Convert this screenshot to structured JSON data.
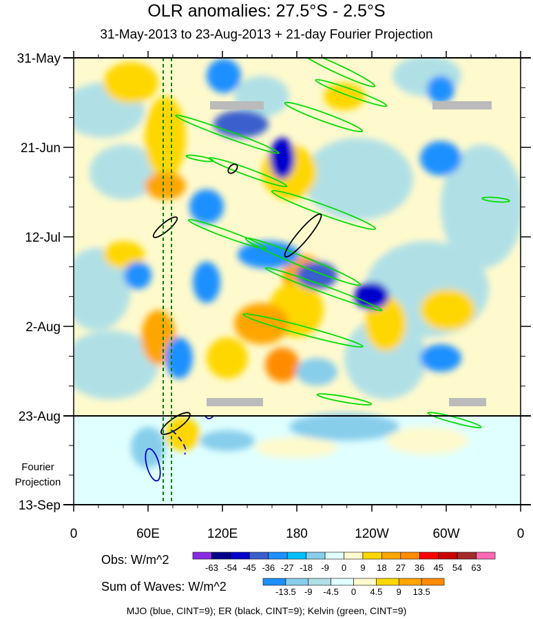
{
  "chart_data": {
    "type": "heatmap",
    "title": "OLR anomalies: 27.5°S - 2.5°S",
    "subtitle": "31-May-2013 to 23-Aug-2013 + 21-day Fourier Projection",
    "x_tick_labels": [
      "0",
      "60E",
      "120E",
      "180",
      "120W",
      "60W",
      "0"
    ],
    "y_tick_labels": [
      "31-May",
      "21-Jun",
      "12-Jul",
      "2-Aug",
      "23-Aug",
      "13-Sep"
    ],
    "projection_label": "Fourier\nProjection",
    "projection_start": "23-Aug",
    "obs_legend": {
      "label": "Obs: W/m^2",
      "ticks": [
        "-63",
        "-54",
        "-45",
        "-36",
        "-27",
        "-18",
        "-9",
        "0",
        "9",
        "18",
        "27",
        "36",
        "45",
        "54",
        "63"
      ],
      "colors": [
        "#8a2be2",
        "#00008b",
        "#0000cd",
        "#3a5fcd",
        "#1e90ff",
        "#00bfff",
        "#87ceeb",
        "#e0ffff",
        "#fffacd",
        "#ffd700",
        "#ffa500",
        "#ff8c00",
        "#ff0000",
        "#cd0000",
        "#a52a2a",
        "#ff69b4"
      ]
    },
    "waves_legend": {
      "label": "Sum of Waves: W/m^2",
      "ticks": [
        "-13.5",
        "-9",
        "-4.5",
        "0",
        "4.5",
        "9",
        "13.5"
      ],
      "colors": [
        "#1e90ff",
        "#87ceeb",
        "#b0e0e6",
        "#e0ffff",
        "#fffacd",
        "#ffd700",
        "#ffa500",
        "#ff8c00"
      ]
    },
    "footer": "MJO (blue, CINT=9); ER (black, CINT=9); Kelvin (green, CINT=9)",
    "colors": {
      "background_field": "#fffacd",
      "mjo": "#0000cd",
      "er": "#000000",
      "kelvin": "#00dd00",
      "reference_lines": "#008000",
      "missing": "#bbbbbb"
    }
  }
}
